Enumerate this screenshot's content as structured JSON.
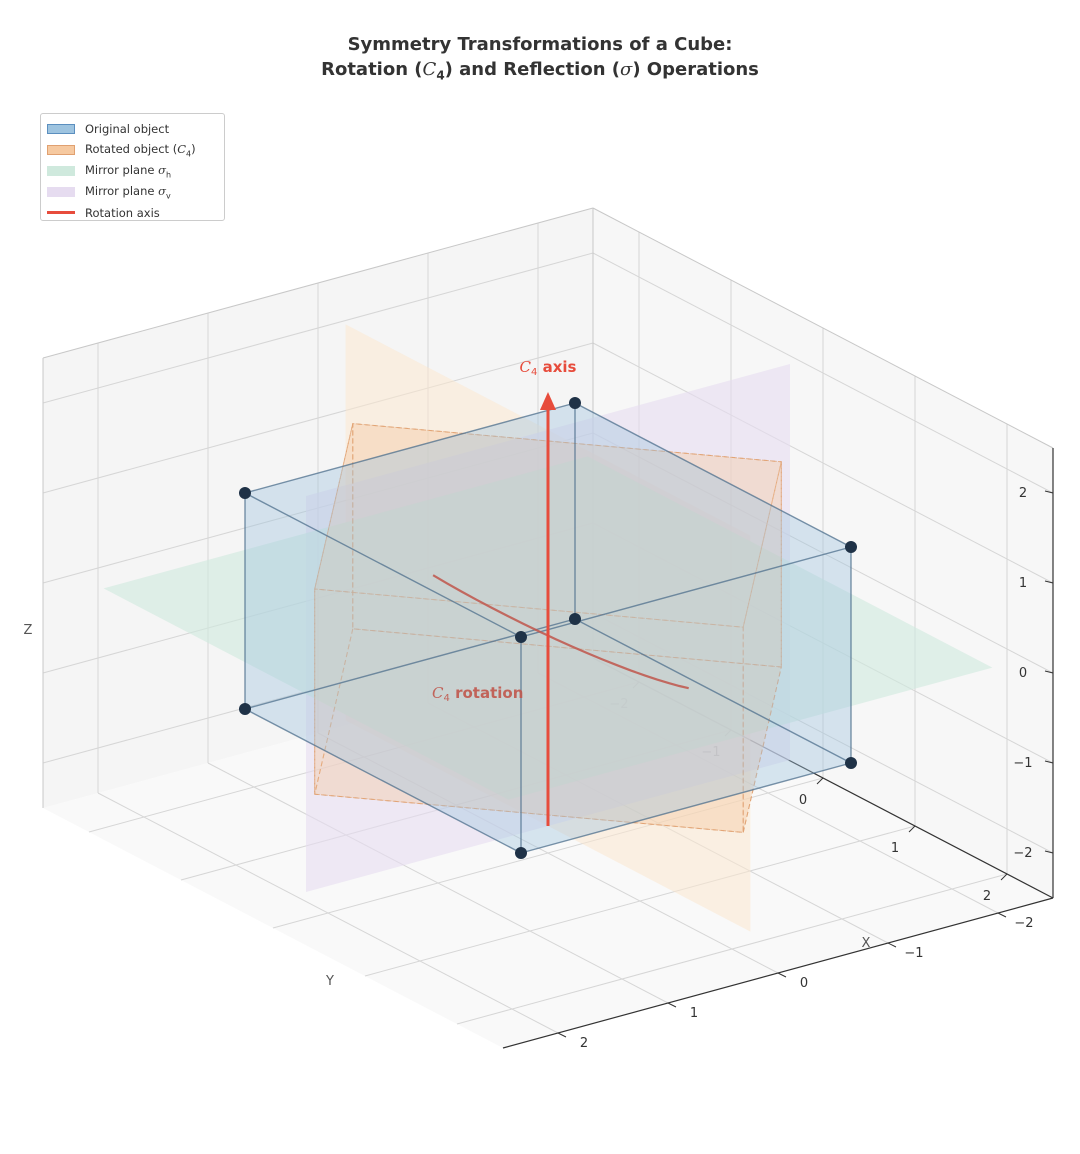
{
  "chart_data": {
    "type": "3d-scatter",
    "title": {
      "line1": "Symmetry Transformations of a Cube:",
      "line2_prefix": "Rotation (",
      "line2_c": "C",
      "line2_c_sub": "4",
      "line2_middle": ") and Reflection (",
      "line2_sigma": "σ",
      "line2_suffix": ") Operations"
    },
    "axes": {
      "xlabel": "X",
      "ylabel": "Y",
      "zlabel": "Z",
      "xlim": [
        -2.5,
        2.5
      ],
      "ylim": [
        -2.5,
        2.5
      ],
      "zlim": [
        -2.5,
        2.5
      ],
      "x_ticks": [
        "−2",
        "−1",
        "0",
        "1",
        "2"
      ],
      "y_ticks": [
        "−2",
        "−1",
        "0",
        "1",
        "2"
      ],
      "z_ticks": [
        "−2",
        "−1",
        "0",
        "1",
        "2"
      ],
      "grid": true
    },
    "legend": {
      "placement": "top-left",
      "entries": [
        {
          "label": "Original object",
          "color": "#9ec4e0",
          "edge": "#5b8fbf",
          "kind": "patch"
        },
        {
          "label_prefix": "Rotated object (",
          "label_math": "C",
          "label_sub": "4",
          "label_suffix": ")",
          "color": "#f6c9a0",
          "edge": "#e0a070",
          "kind": "patch"
        },
        {
          "label_prefix": "Mirror plane ",
          "label_math": "σ",
          "label_sub": "h",
          "label_suffix": "",
          "color": "#cfe9dd",
          "edge": "#cfe9dd",
          "kind": "patch"
        },
        {
          "label_prefix": "Mirror plane ",
          "label_math": "σ",
          "label_sub": "v",
          "label_suffix": "",
          "color": "#e6dcf0",
          "edge": "#e6dcf0",
          "kind": "patch"
        },
        {
          "label": "Rotation axis",
          "color": "#e74c3c",
          "kind": "line"
        }
      ]
    },
    "original_cube": {
      "vertices": [
        [
          -1.5,
          -1.5,
          -1.2
        ],
        [
          1.5,
          -1.5,
          -1.2
        ],
        [
          1.5,
          1.5,
          -1.2
        ],
        [
          -1.5,
          1.5,
          -1.2
        ],
        [
          -1.5,
          -1.5,
          1.2
        ],
        [
          1.5,
          -1.5,
          1.2
        ],
        [
          1.5,
          1.5,
          1.2
        ],
        [
          -1.5,
          1.5,
          1.2
        ]
      ],
      "color": "#9ec4e0",
      "edge_color": "#4d6f8c",
      "vertex_color": "#1f3247"
    },
    "rotated_cube": {
      "rotation_deg": 45,
      "color": "#f6c9a0",
      "edge_color": "#e0a070"
    },
    "mirror_planes": {
      "sigma_h": {
        "z": 0,
        "extent": 2.2,
        "color": "#cfe9dd"
      },
      "sigma_v": {
        "y": 0,
        "extent": 2.2,
        "color": "#e6dcf0"
      },
      "back_plane": {
        "x": 0,
        "extent": 2.2,
        "color": "#fbe7cf"
      }
    },
    "rotation_axis": {
      "from": [
        0,
        0,
        -2.2
      ],
      "to": [
        0,
        0,
        2.6
      ],
      "color": "#e74c3c",
      "label_math": "C",
      "label_sub": "4",
      "label_text": " axis"
    },
    "rotation_arc": {
      "color": "#c0564b",
      "label_math": "C",
      "label_sub": "4",
      "label_text": " rotation"
    }
  }
}
